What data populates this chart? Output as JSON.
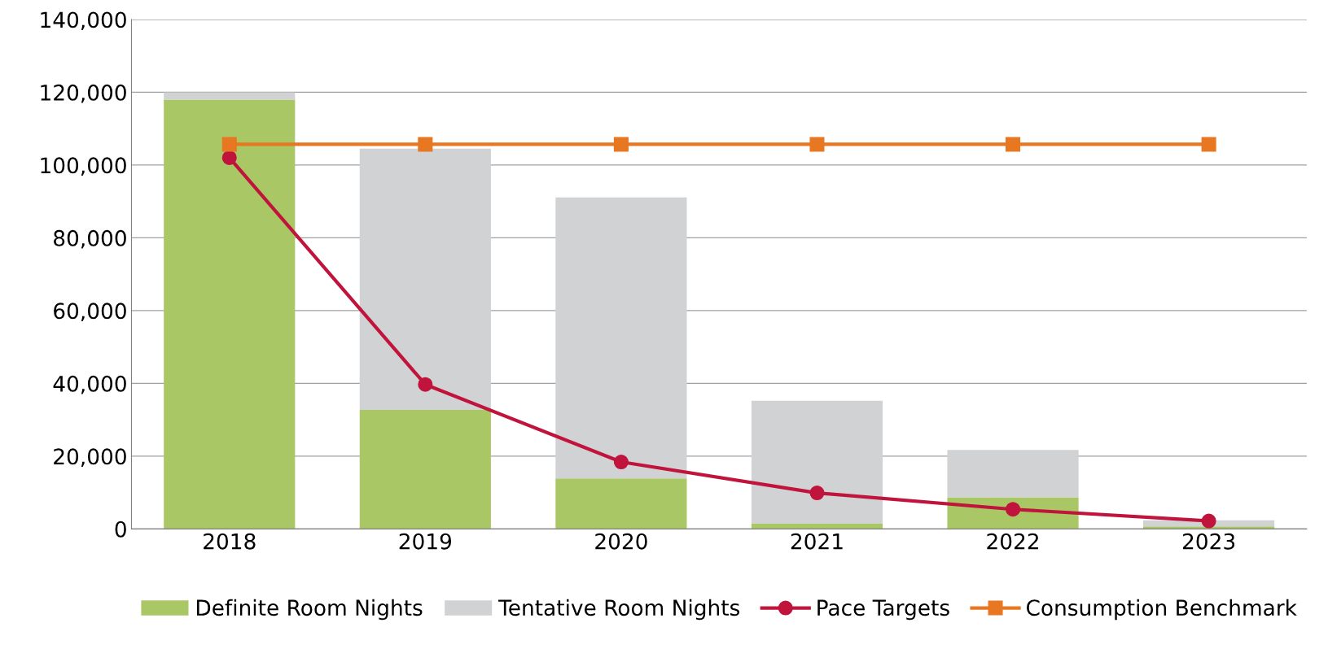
{
  "chart_data": {
    "type": "bar",
    "stacked": true,
    "categories": [
      "2018",
      "2019",
      "2020",
      "2021",
      "2022",
      "2023"
    ],
    "series": [
      {
        "name": "Definite Room Nights",
        "color": "#a9c765",
        "values": [
          118000,
          32700,
          13900,
          1400,
          8700,
          700
        ]
      },
      {
        "name": "Tentative Room Nights",
        "color": "#d1d2d4",
        "values": [
          2000,
          71800,
          77200,
          33800,
          13000,
          1700
        ]
      },
      {
        "name": "Pace Targets",
        "type": "line",
        "color": "#c0143c",
        "marker": "circle",
        "values": [
          102000,
          39700,
          18400,
          9900,
          5400,
          2200
        ]
      },
      {
        "name": "Consumption Benchmark",
        "type": "line",
        "color": "#e87722",
        "marker": "square",
        "values": [
          105700,
          105700,
          105700,
          105700,
          105700,
          105700
        ]
      }
    ],
    "ylim": [
      0,
      140000
    ],
    "yticks": [
      {
        "value": 0,
        "label": "0"
      },
      {
        "value": 20000,
        "label": "20,000"
      },
      {
        "value": 40000,
        "label": "40,000"
      },
      {
        "value": 60000,
        "label": "60,000"
      },
      {
        "value": 80000,
        "label": "80,000"
      },
      {
        "value": 100000,
        "label": "100,000"
      },
      {
        "value": 120000,
        "label": "120,000"
      },
      {
        "value": 140000,
        "label": "140,000"
      }
    ],
    "grid": "y",
    "legend": "bottom"
  }
}
